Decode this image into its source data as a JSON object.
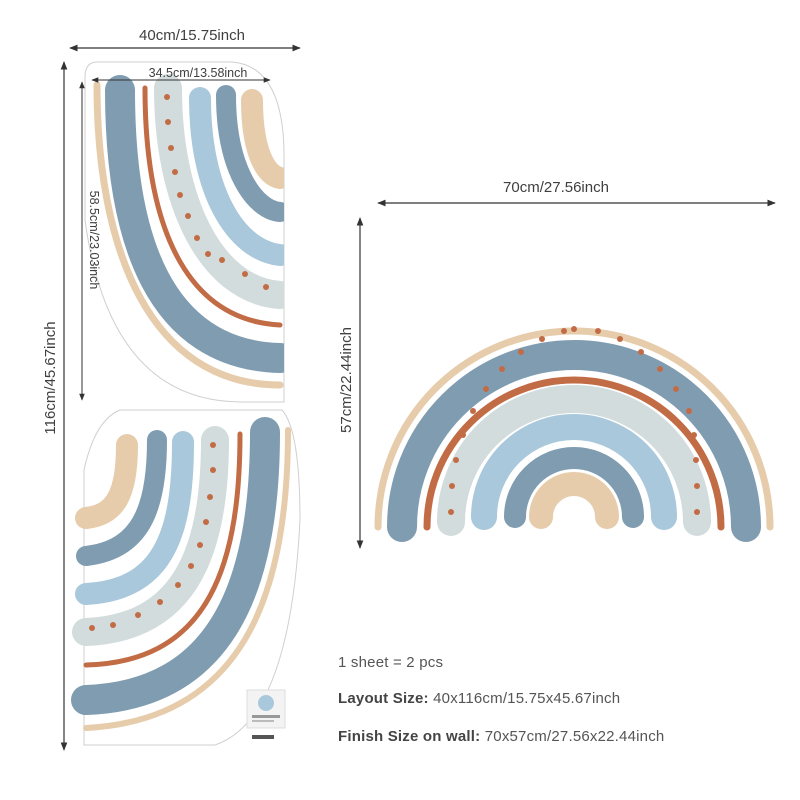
{
  "colors": {
    "slate_blue": "#7f9cb1",
    "light_blue": "#a9c8db",
    "sage": "#d2dcdc",
    "rust": "#c26c46",
    "beige": "#e6ccab",
    "sheet_border": "#c8c8c8",
    "text": "#444444"
  },
  "layout_sheet": {
    "width_label": "40cm/15.75inch",
    "height_label": "116cm/45.67inch",
    "piece_width_label": "34.5cm/13.58inch",
    "piece_height_label": "58.5cm/23.03inch"
  },
  "finished_rainbow": {
    "width_label": "70cm/27.56inch",
    "height_label": "57cm/22.44inch"
  },
  "info": {
    "count": "1 sheet = 2 pcs",
    "layout_label": "Layout Size:",
    "layout_value": "40x116cm/15.75x45.67inch",
    "finish_label": "Finish Size on wall:",
    "finish_value": "70x57cm/27.56x22.44inch"
  }
}
